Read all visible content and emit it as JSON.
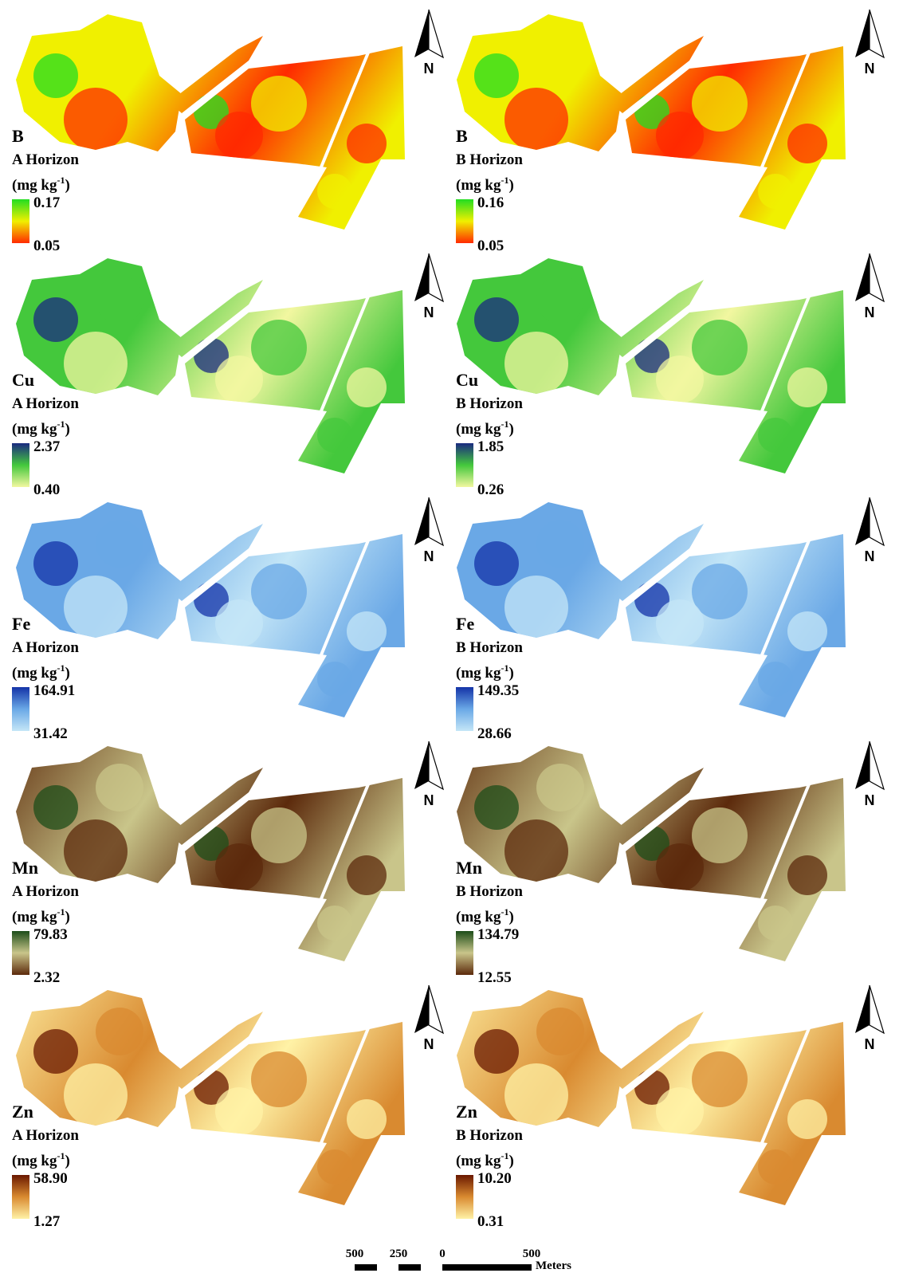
{
  "panels": [
    {
      "element": "B",
      "horizon": "A Horizon",
      "unit_open": "(mg kg",
      "unit_sup": "-1",
      "unit_close": ")",
      "legend_max": "0.17",
      "legend_min": "0.05",
      "north": "N",
      "colors": [
        "#22dd22",
        "#f0f000",
        "#ff2a00"
      ]
    },
    {
      "element": "B",
      "horizon": "B Horizon",
      "unit_open": "(mg kg",
      "unit_sup": "-1",
      "unit_close": ")",
      "legend_max": "0.16",
      "legend_min": "0.05",
      "north": "N",
      "colors": [
        "#22dd22",
        "#f0f000",
        "#ff2a00"
      ]
    },
    {
      "element": "Cu",
      "horizon": "A Horizon",
      "unit_open": "(mg kg",
      "unit_sup": "-1",
      "unit_close": ")",
      "legend_max": "2.37",
      "legend_min": "0.40",
      "north": "N",
      "colors": [
        "#1a2a80",
        "#44c83c",
        "#f2f7a0"
      ]
    },
    {
      "element": "Cu",
      "horizon": "B Horizon",
      "unit_open": "(mg kg",
      "unit_sup": "-1",
      "unit_close": ")",
      "legend_max": "1.85",
      "legend_min": "0.26",
      "north": "N",
      "colors": [
        "#1a2a80",
        "#44c83c",
        "#f2f7a0"
      ]
    },
    {
      "element": "Fe",
      "horizon": "A Horizon",
      "unit_open": "(mg kg",
      "unit_sup": "-1",
      "unit_close": ")",
      "legend_max": "164.91",
      "legend_min": "31.42",
      "north": "N",
      "colors": [
        "#1433a8",
        "#6aa8e6",
        "#c4e6f7"
      ]
    },
    {
      "element": "Fe",
      "horizon": "B Horizon",
      "unit_open": "(mg kg",
      "unit_sup": "-1",
      "unit_close": ")",
      "legend_max": "149.35",
      "legend_min": "28.66",
      "north": "N",
      "colors": [
        "#1433a8",
        "#6aa8e6",
        "#c4e6f7"
      ]
    },
    {
      "element": "Mn",
      "horizon": "A Horizon",
      "unit_open": "(mg kg",
      "unit_sup": "-1",
      "unit_close": ")",
      "legend_max": "79.83",
      "legend_min": "2.32",
      "north": "N",
      "colors": [
        "#1d4d1a",
        "#c9c58a",
        "#5c2a0c"
      ]
    },
    {
      "element": "Mn",
      "horizon": "B Horizon",
      "unit_open": "(mg kg",
      "unit_sup": "-1",
      "unit_close": ")",
      "legend_max": "134.79",
      "legend_min": "12.55",
      "north": "N",
      "colors": [
        "#1d4d1a",
        "#c9c58a",
        "#5c2a0c"
      ]
    },
    {
      "element": "Zn",
      "horizon": "A Horizon",
      "unit_open": "(mg kg",
      "unit_sup": "-1",
      "unit_close": ")",
      "legend_max": "58.90",
      "legend_min": "1.27",
      "north": "N",
      "colors": [
        "#6a1800",
        "#d98a30",
        "#fff2a6"
      ]
    },
    {
      "element": "Zn",
      "horizon": "B Horizon",
      "unit_open": "(mg kg",
      "unit_sup": "-1",
      "unit_close": ")",
      "legend_max": "10.20",
      "legend_min": "0.31",
      "north": "N",
      "colors": [
        "#6a1800",
        "#d98a30",
        "#fff2a6"
      ]
    }
  ],
  "scale_bar": {
    "labels": [
      "500",
      "250",
      "0",
      "500"
    ],
    "unit": "Meters"
  }
}
